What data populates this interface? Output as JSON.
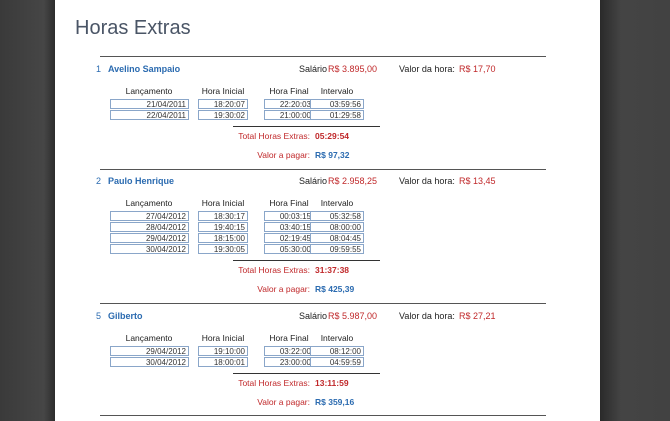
{
  "title": "Horas Extras",
  "labels": {
    "salario": "Salário",
    "valor_hora": "Valor da hora:",
    "col_lancamento": "Lançamento",
    "col_hora_inicial": "Hora Inicial",
    "col_hora_final": "Hora Final",
    "col_intervalo": "Intervalo",
    "total_horas": "Total Horas Extras:",
    "valor_pagar": "Valor a pagar:"
  },
  "employees": [
    {
      "num": "1",
      "name": "Avelino Sampaio",
      "salario": "R$ 3.895,00",
      "valor_hora": "R$ 17,70",
      "rows": [
        {
          "date": "21/04/2011",
          "ini": "18:20:07",
          "fin": "22:20:03",
          "int": "03:59:56"
        },
        {
          "date": "22/04/2011",
          "ini": "19:30:02",
          "fin": "21:00:00",
          "int": "01:29:58"
        }
      ],
      "total": "05:29:54",
      "pagar": "R$ 97,32"
    },
    {
      "num": "2",
      "name": "Paulo Henrique",
      "salario": "R$ 2.958,25",
      "valor_hora": "R$ 13,45",
      "rows": [
        {
          "date": "27/04/2012",
          "ini": "18:30:17",
          "fin": "00:03:15",
          "int": "05:32:58"
        },
        {
          "date": "28/04/2012",
          "ini": "19:40:15",
          "fin": "03:40:15",
          "int": "08:00:00"
        },
        {
          "date": "29/04/2012",
          "ini": "18:15:00",
          "fin": "02:19:45",
          "int": "08:04:45"
        },
        {
          "date": "30/04/2012",
          "ini": "19:30:05",
          "fin": "05:30:00",
          "int": "09:59:55"
        }
      ],
      "total": "31:37:38",
      "pagar": "R$ 425,39"
    },
    {
      "num": "5",
      "name": "Gilberto",
      "salario": "R$ 5.987,00",
      "valor_hora": "R$ 27,21",
      "rows": [
        {
          "date": "29/04/2012",
          "ini": "19:10:00",
          "fin": "03:22:00",
          "int": "08:12:00"
        },
        {
          "date": "30/04/2012",
          "ini": "18:00:01",
          "fin": "23:00:00",
          "int": "04:59:59"
        }
      ],
      "total": "13:11:59",
      "pagar": "R$ 359,16"
    }
  ]
}
